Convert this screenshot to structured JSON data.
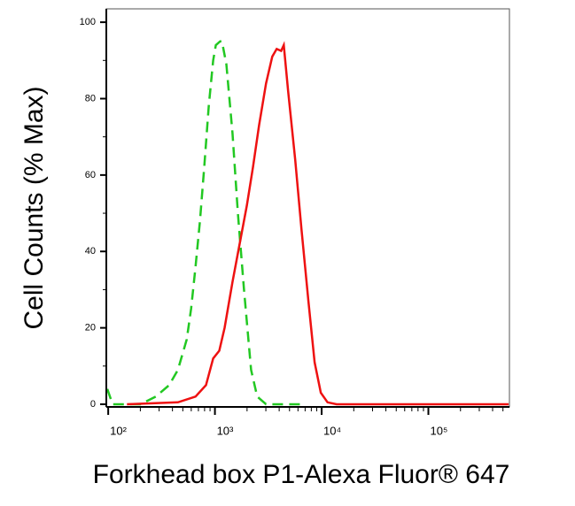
{
  "chart_data": {
    "type": "line",
    "xlabel": "Forkhead box P1-Alexa Fluor® 647",
    "ylabel": "Cell Counts (% Max)",
    "xscale": "log",
    "xlim": [
      96,
      575000
    ],
    "ylim": [
      -0.7,
      103.5
    ],
    "xticks": [
      {
        "value": 100,
        "label": "10²"
      },
      {
        "value": 1000,
        "label": "10³"
      },
      {
        "value": 10000,
        "label": "10⁴"
      },
      {
        "value": 100000,
        "label": "10⁵"
      }
    ],
    "xminorticks": [
      200,
      300,
      400,
      500,
      600,
      700,
      800,
      900,
      2000,
      3000,
      4000,
      5000,
      6000,
      7000,
      8000,
      9000,
      20000,
      30000,
      40000,
      50000,
      60000,
      70000,
      80000,
      90000,
      200000,
      300000,
      400000,
      500000
    ],
    "yticks": [
      0,
      20,
      40,
      60,
      80,
      100
    ],
    "yminorticks": [
      10,
      30,
      50,
      70,
      90
    ],
    "series": [
      {
        "color": "#22c822",
        "dash": true,
        "x": [
          98,
          110,
          200,
          279,
          372,
          450,
          545,
          598,
          658,
          724,
          794,
          875,
          962,
          1019,
          1120,
          1164,
          1281,
          1460,
          1640,
          1874,
          2182,
          2490,
          3013,
          7000
        ],
        "values": [
          4,
          0,
          0,
          2,
          5,
          9,
          17,
          25,
          36,
          48,
          62,
          78,
          90,
          94,
          95,
          95,
          89,
          71,
          50,
          30,
          9,
          2,
          0,
          0
        ]
      },
      {
        "color": "#ee1111",
        "dash": false,
        "x": [
          150,
          450,
          658,
          824,
          962,
          1098,
          1233,
          1460,
          1705,
          1989,
          2271,
          2591,
          3013,
          3444,
          3793,
          4169,
          4414,
          4853,
          5649,
          6457,
          7516,
          8590,
          9814,
          11360,
          13810,
          565000
        ],
        "values": [
          0,
          0.5,
          2,
          5,
          12,
          14,
          20,
          32,
          42,
          52,
          62,
          73,
          84,
          91,
          93,
          92.5,
          94,
          82,
          64,
          46,
          27,
          11,
          3,
          0.5,
          0,
          0
        ]
      }
    ]
  }
}
